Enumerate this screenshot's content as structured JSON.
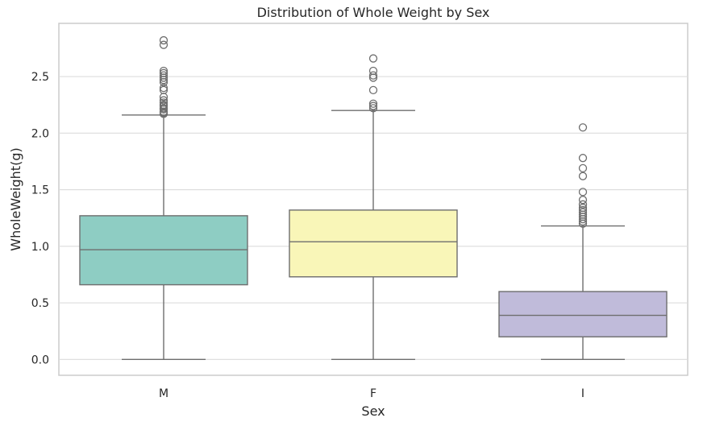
{
  "chart_data": {
    "type": "box",
    "title": "Distribution of Whole Weight by Sex",
    "xlabel": "Sex",
    "ylabel": "WholeWeight(g)",
    "categories": [
      "M",
      "F",
      "I"
    ],
    "ylim": [
      -0.14,
      2.97
    ],
    "yticks": [
      0.0,
      0.5,
      1.0,
      1.5,
      2.0,
      2.5
    ],
    "ytick_labels": [
      "0.0",
      "0.5",
      "1.0",
      "1.5",
      "2.0",
      "2.5"
    ],
    "grid": true,
    "legend": "none",
    "boxes": [
      {
        "category": "M",
        "color": "#8ecdc3",
        "whisker_low": 0.0,
        "q1": 0.66,
        "median": 0.97,
        "q3": 1.27,
        "whisker_high": 2.16,
        "outliers": [
          2.17,
          2.18,
          2.19,
          2.21,
          2.22,
          2.24,
          2.25,
          2.27,
          2.29,
          2.32,
          2.38,
          2.4,
          2.45,
          2.47,
          2.49,
          2.51,
          2.53,
          2.55,
          2.78,
          2.82
        ]
      },
      {
        "category": "F",
        "color": "#f9f6b8",
        "whisker_low": 0.0,
        "q1": 0.73,
        "median": 1.04,
        "q3": 1.32,
        "whisker_high": 2.2,
        "outliers": [
          2.22,
          2.24,
          2.26,
          2.38,
          2.49,
          2.51,
          2.55,
          2.66
        ]
      },
      {
        "category": "I",
        "color": "#c0bbda",
        "whisker_low": 0.0,
        "q1": 0.2,
        "median": 0.39,
        "q3": 0.6,
        "whisker_high": 1.18,
        "outliers": [
          1.2,
          1.22,
          1.24,
          1.26,
          1.28,
          1.3,
          1.32,
          1.34,
          1.37,
          1.41,
          1.48,
          1.62,
          1.69,
          1.78,
          2.05
        ]
      }
    ]
  }
}
